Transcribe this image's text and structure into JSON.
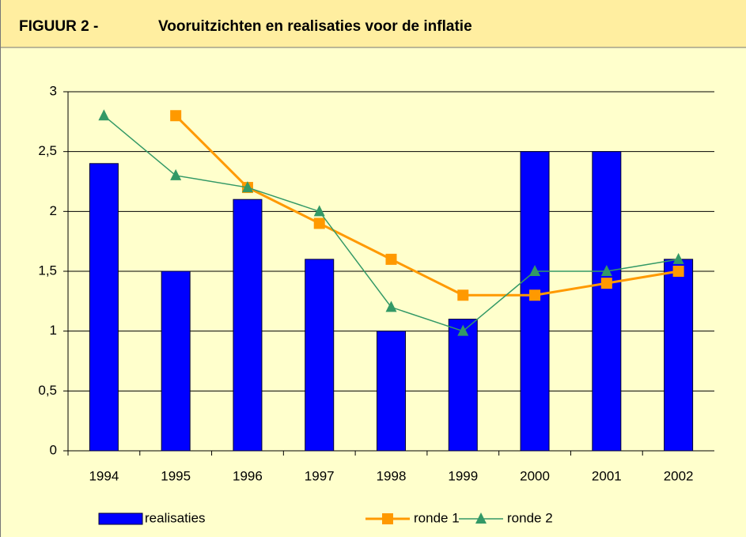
{
  "chart_data": {
    "type": "bar_line",
    "figure_label": "FIGUUR 2 -",
    "title": "Vooruitzichten en realisaties voor de inflatie",
    "categories": [
      "1994",
      "1995",
      "1996",
      "1997",
      "1998",
      "1999",
      "2000",
      "2001",
      "2002"
    ],
    "series": [
      {
        "name": "realisaties",
        "type": "bar",
        "color": "#0000ff",
        "values": [
          2.4,
          1.5,
          2.1,
          1.6,
          1.0,
          1.1,
          2.5,
          2.5,
          1.6
        ]
      },
      {
        "name": "ronde 1",
        "type": "line",
        "marker": "square",
        "color": "#ff9900",
        "values": [
          null,
          2.8,
          2.2,
          1.9,
          1.6,
          1.3,
          1.3,
          1.4,
          1.5
        ]
      },
      {
        "name": "ronde 2",
        "type": "line",
        "marker": "triangle",
        "color": "#339966",
        "values": [
          2.8,
          2.3,
          2.2,
          2.0,
          1.2,
          1.0,
          1.5,
          1.5,
          1.6
        ]
      }
    ],
    "ylim": [
      0,
      3
    ],
    "yticks": [
      0,
      {
        "value": 0.5,
        "label": "0,5"
      },
      1,
      {
        "value": 1.5,
        "label": "1,5"
      },
      2,
      {
        "value": 2.5,
        "label": "2,5"
      },
      3
    ],
    "grid": true,
    "legend": "bottom"
  }
}
